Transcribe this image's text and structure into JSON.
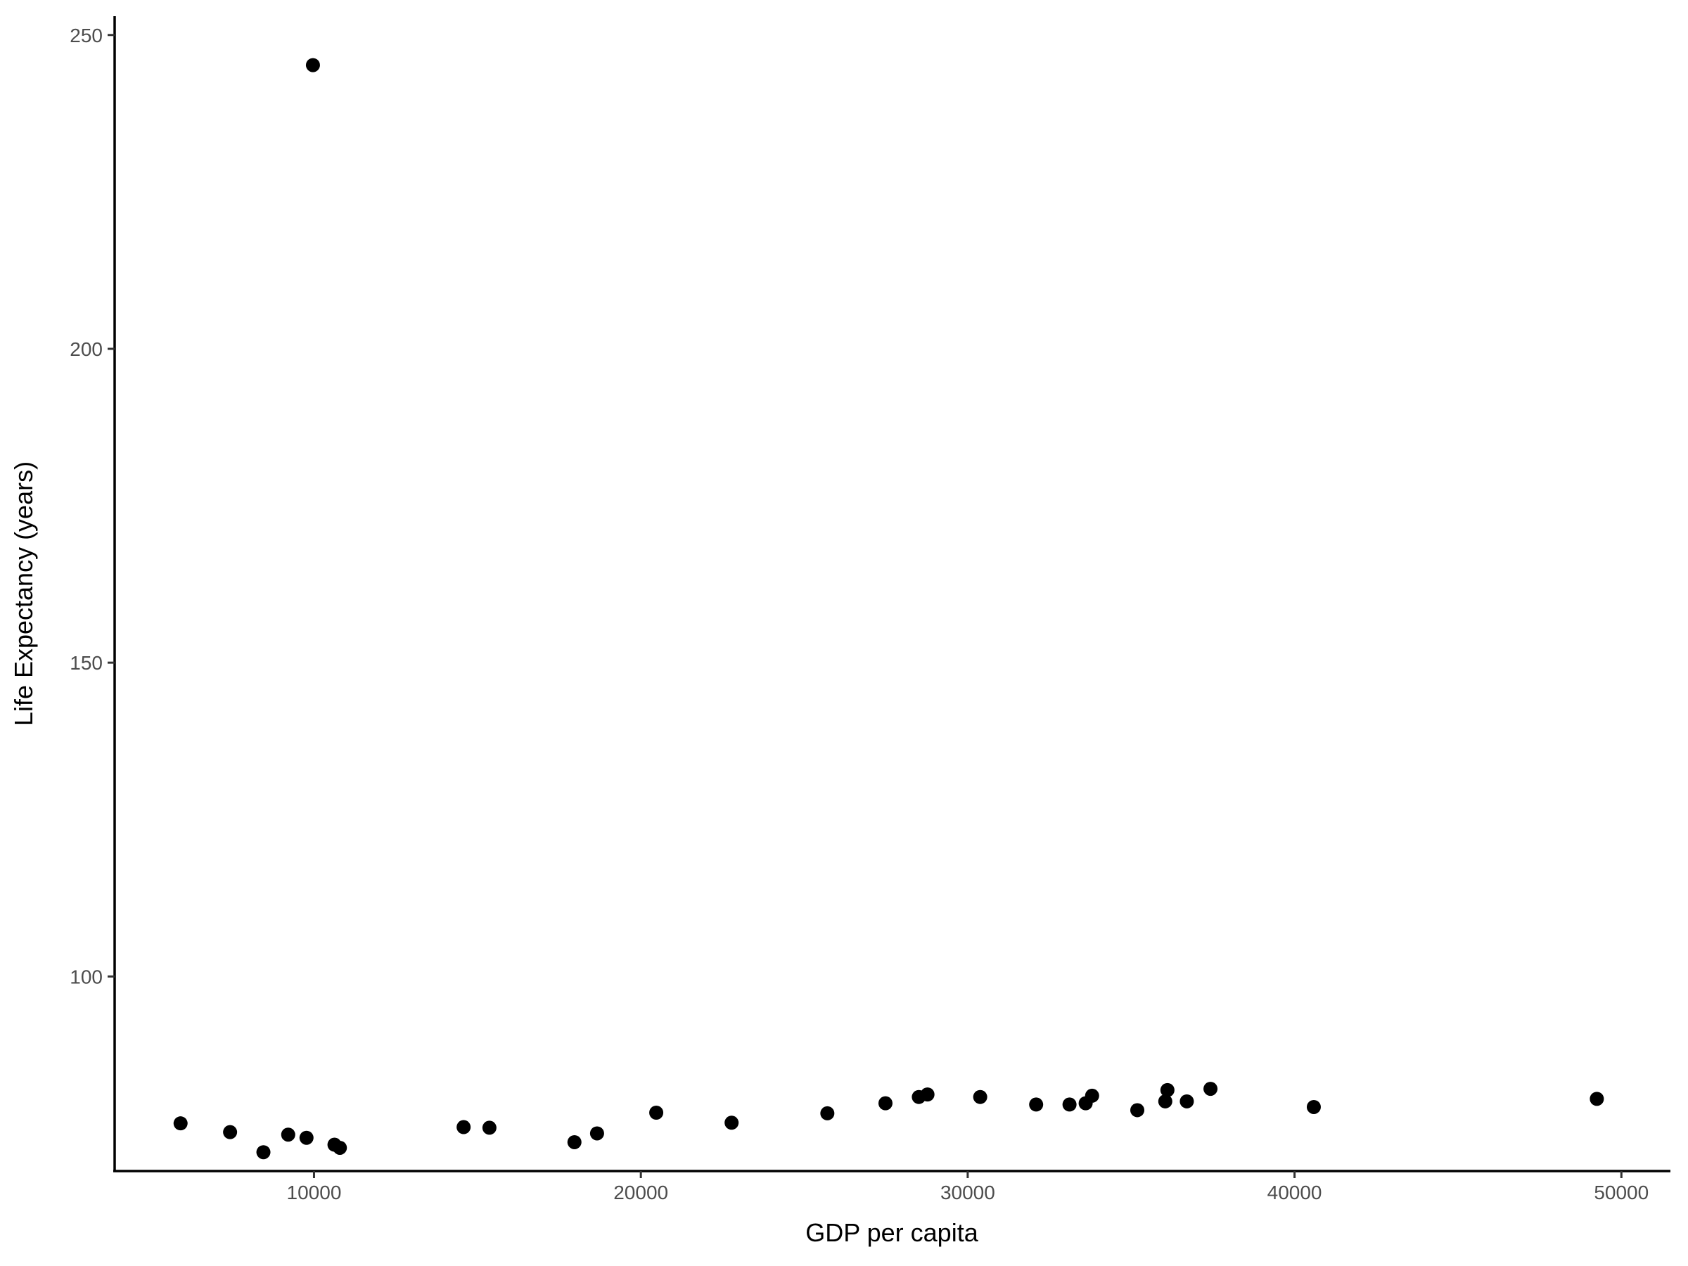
{
  "chart_data": {
    "type": "scatter",
    "title": "",
    "xlabel": "GDP per capita",
    "ylabel": "Life Expectancy (years)",
    "xlim": [
      3900,
      51500
    ],
    "ylim": [
      69,
      253
    ],
    "xticks": [
      10000,
      20000,
      30000,
      40000,
      50000
    ],
    "yticks": [
      100,
      150,
      200,
      250
    ],
    "grid": false,
    "point_color": "#000000",
    "points": [
      {
        "x": 5917,
        "y": 76.6
      },
      {
        "x": 7432,
        "y": 75.2
      },
      {
        "x": 8452,
        "y": 72.0
      },
      {
        "x": 9210,
        "y": 74.8
      },
      {
        "x": 9770,
        "y": 74.3
      },
      {
        "x": 9967,
        "y": 245.2
      },
      {
        "x": 10626,
        "y": 73.2
      },
      {
        "x": 10791,
        "y": 72.7
      },
      {
        "x": 14577,
        "y": 76.0
      },
      {
        "x": 15367,
        "y": 75.9
      },
      {
        "x": 17968,
        "y": 73.6
      },
      {
        "x": 18660,
        "y": 75.0
      },
      {
        "x": 20471,
        "y": 78.3
      },
      {
        "x": 22776,
        "y": 76.7
      },
      {
        "x": 25706,
        "y": 78.2
      },
      {
        "x": 27484,
        "y": 79.8
      },
      {
        "x": 28505,
        "y": 80.8
      },
      {
        "x": 28769,
        "y": 81.2
      },
      {
        "x": 30382,
        "y": 80.8
      },
      {
        "x": 32094,
        "y": 79.6
      },
      {
        "x": 33115,
        "y": 79.6
      },
      {
        "x": 33609,
        "y": 79.8
      },
      {
        "x": 33806,
        "y": 81.0
      },
      {
        "x": 35189,
        "y": 78.7
      },
      {
        "x": 36045,
        "y": 80.1
      },
      {
        "x": 36111,
        "y": 81.9
      },
      {
        "x": 36704,
        "y": 80.1
      },
      {
        "x": 37428,
        "y": 82.1
      },
      {
        "x": 40589,
        "y": 79.2
      },
      {
        "x": 49249,
        "y": 80.5
      }
    ]
  }
}
